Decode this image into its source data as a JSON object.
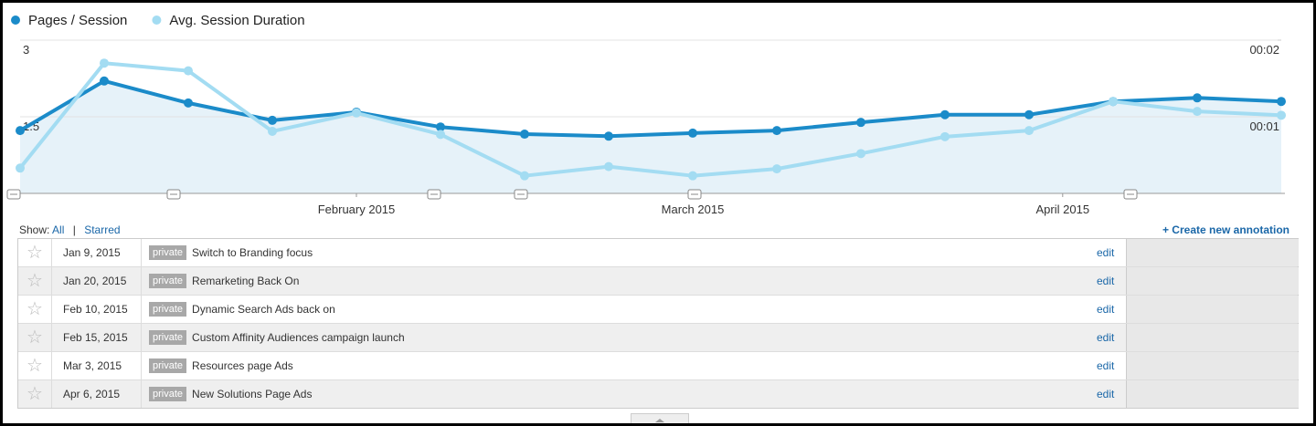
{
  "chart_data": {
    "type": "line",
    "categories": [
      null,
      null,
      null,
      null,
      null,
      null,
      null,
      null,
      null,
      null,
      null,
      null,
      null,
      null,
      null,
      null
    ],
    "xticks": [
      {
        "value": 4,
        "label": "February 2015"
      },
      {
        "value": 8,
        "label": "March 2015"
      },
      {
        "value": 12.4,
        "label": "April 2015"
      }
    ],
    "series": [
      {
        "name": "Pages / Session",
        "color": "#1b8bc9",
        "values": [
          1.23,
          2.2,
          1.77,
          1.43,
          1.59,
          1.3,
          1.16,
          1.12,
          1.18,
          1.23,
          1.39,
          1.54,
          1.54,
          1.8,
          1.87,
          1.8
        ]
      },
      {
        "name": "Avg. Session Duration",
        "color": "#a3dcf2",
        "axis": "y2",
        "values": [
          0.33,
          1.7,
          1.6,
          0.81,
          1.05,
          0.77,
          0.23,
          0.35,
          0.23,
          0.32,
          0.52,
          0.74,
          0.82,
          1.2,
          1.07,
          1.02
        ]
      }
    ],
    "ylim": [
      0,
      3
    ],
    "yticks": [
      1.5,
      3
    ],
    "y2lim": [
      0,
      2
    ],
    "y2ticks": [
      {
        "value": 1,
        "label": "00:01"
      },
      {
        "value": 2,
        "label": "00:02"
      }
    ],
    "grid": true,
    "legend": "top-left"
  },
  "annotations": {
    "show_label": "Show:",
    "all": "All",
    "separator": "|",
    "starred": "Starred",
    "create": "+ Create new annotation",
    "rows": [
      {
        "date": "Jan 9, 2015",
        "tag": "private",
        "text": "Switch to Branding focus",
        "action": "edit"
      },
      {
        "date": "Jan 20, 2015",
        "tag": "private",
        "text": "Remarketing Back On",
        "action": "edit"
      },
      {
        "date": "Feb 10, 2015",
        "tag": "private",
        "text": "Dynamic Search Ads back on",
        "action": "edit"
      },
      {
        "date": "Feb 15, 2015",
        "tag": "private",
        "text": "Custom Affinity Audiences campaign launch",
        "action": "edit"
      },
      {
        "date": "Mar 3, 2015",
        "tag": "private",
        "text": "Resources page Ads",
        "action": "edit"
      },
      {
        "date": "Apr 6, 2015",
        "tag": "private",
        "text": "New Solutions Page Ads",
        "action": "edit"
      }
    ]
  }
}
